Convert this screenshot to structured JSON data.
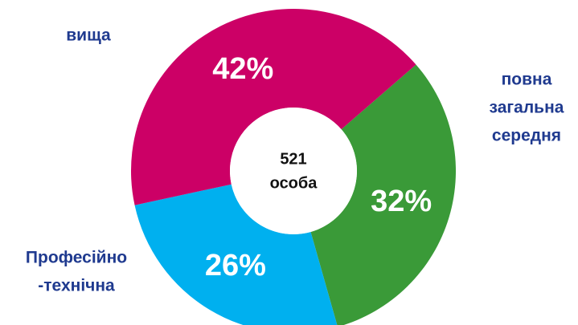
{
  "chart_data": {
    "type": "donut",
    "categories": [
      [
        "повна",
        "загальна",
        "середня"
      ],
      [
        "Професійно",
        "-технічна"
      ],
      [
        "вища"
      ]
    ],
    "values": [
      32,
      26,
      42
    ],
    "value_labels": [
      "32%",
      "26%",
      "42%"
    ],
    "colors": [
      "#3a9a38",
      "#00b0ef",
      "#cc0066"
    ],
    "center_text": [
      "521",
      "особа"
    ]
  }
}
